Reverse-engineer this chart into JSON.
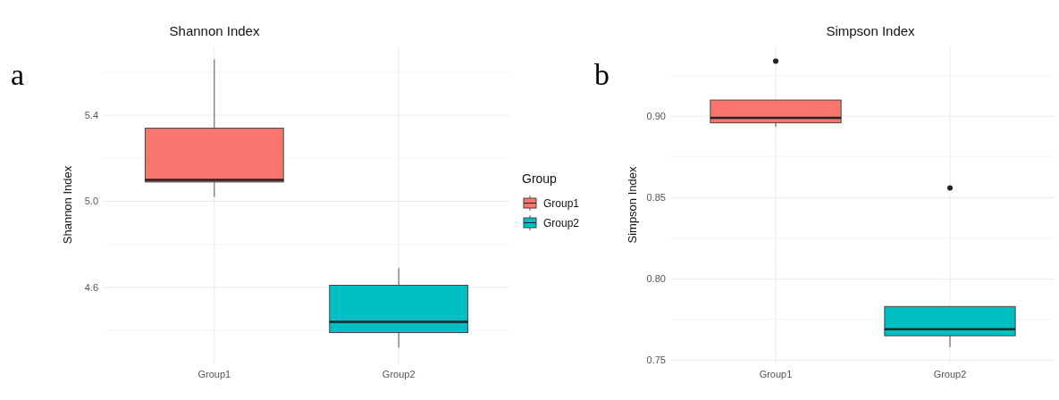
{
  "chart_data": [
    {
      "type": "box",
      "title": "Shannon Index",
      "ylabel": "Shannon Index",
      "categories": [
        "Group1",
        "Group2"
      ],
      "ylim": [
        4.247,
        5.72
      ],
      "yticks": [
        {
          "value": 4.4,
          "label": null
        },
        4.6,
        {
          "value": 4.8,
          "label": null
        },
        {
          "value": 5.0,
          "label": "5.0"
        },
        {
          "value": 5.2,
          "label": null
        },
        5.4,
        {
          "value": 5.6,
          "label": null
        }
      ],
      "grid": true,
      "legend": "right",
      "legend_title": "Group",
      "annotations": [
        "a"
      ],
      "series": [
        {
          "name": "Group1",
          "color": "#f8766d",
          "boxes": [
            {
              "low": 5.02,
              "q1": 5.09,
              "median": 5.1,
              "q3": 5.34,
              "high": 5.66
            },
            null
          ]
        },
        {
          "name": "Group2",
          "color": "#00bfc4",
          "boxes": [
            null,
            {
              "low": 4.32,
              "q1": 4.39,
              "median": 4.44,
              "q3": 4.61,
              "high": 4.69
            }
          ]
        }
      ]
    },
    {
      "type": "box",
      "title": "Simpson Index",
      "ylabel": "Simpson Index",
      "categories": [
        "Group1",
        "Group2"
      ],
      "ylim": [
        0.748,
        0.943
      ],
      "yticks": [
        0.75,
        {
          "value": 0.775,
          "label": null
        },
        {
          "value": 0.8,
          "label": "0.80"
        },
        {
          "value": 0.825,
          "label": null
        },
        0.85,
        {
          "value": 0.875,
          "label": null
        },
        {
          "value": 0.9,
          "label": "0.90"
        },
        {
          "value": 0.925,
          "label": null
        }
      ],
      "grid": true,
      "annotations": [
        "b"
      ],
      "series": [
        {
          "color": "#f8766d",
          "boxes": [
            {
              "low": 0.8935,
              "q1": 0.896,
              "median": 0.899,
              "q3": 0.91,
              "high": 0.91,
              "outliers": [
                0.934
              ]
            },
            null
          ]
        },
        {
          "color": "#00bfc4",
          "boxes": [
            null,
            {
              "low": 0.758,
              "q1": 0.765,
              "median": 0.769,
              "q3": 0.783,
              "high": 0.783,
              "outliers": [
                0.856
              ]
            }
          ]
        }
      ]
    }
  ]
}
